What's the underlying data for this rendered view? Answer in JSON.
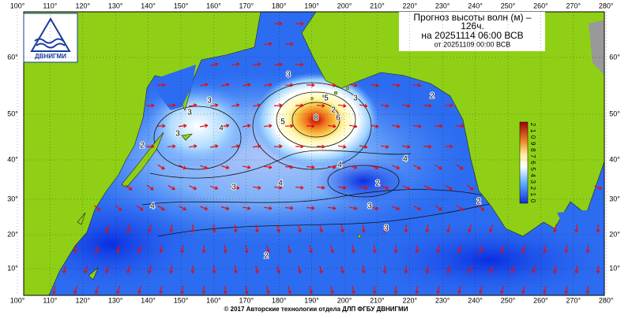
{
  "logo": {
    "text": "ДВНИГМИ"
  },
  "header": {
    "title": "Прогноз высоты волн (м) –",
    "lead": "126ч.",
    "valid": "на 20251114 06:00 ВСВ",
    "issued": "от 20251109 00:00 ВСВ"
  },
  "lon_labels": [
    "100°",
    "110°",
    "120°",
    "130°",
    "140°",
    "150°",
    "160°",
    "170°",
    "180°",
    "190°",
    "200°",
    "210°",
    "220°",
    "230°",
    "240°",
    "250°",
    "260°",
    "270°",
    "280°"
  ],
  "lat_labels": [
    "60°",
    "50°",
    "40°",
    "30°",
    "20°",
    "10°"
  ],
  "colorbar_labels": [
    "2",
    "1",
    "0",
    "9",
    "8",
    "7",
    "6",
    "5",
    "4",
    "3",
    "2",
    "1",
    "0"
  ],
  "contour_labels": [
    "3",
    "3",
    "4",
    "3",
    "2",
    "4",
    "4",
    "5",
    "5",
    "6",
    "8",
    "3",
    "3",
    "4",
    "4",
    "3",
    "2",
    "3",
    "3",
    "2",
    "2",
    "2",
    "2"
  ],
  "footer": "© 2017 Авторские технологии отдела ДЛП ФГБУ ДВНИГМИ"
}
